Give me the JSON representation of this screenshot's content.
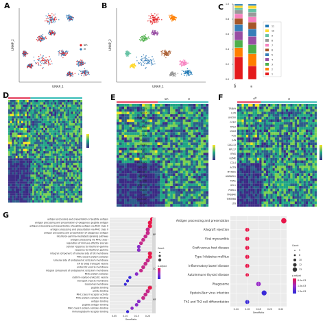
{
  "panels": {
    "A": {
      "letter": "A",
      "xlabel": "UMAP_1",
      "ylabel": "UMAP_2",
      "legend": [
        {
          "label": "NIR",
          "color": "#e41a1c"
        },
        {
          "label": "IR",
          "color": "#377eb8"
        }
      ]
    },
    "B": {
      "letter": "B",
      "xlabel": "UMAP_1",
      "ylabel": "UMAP_2"
    },
    "C": {
      "letter": "C",
      "xticks": [
        "NIR",
        "IR"
      ],
      "yticks": [
        "0.0",
        "0.2",
        "0.4",
        "0.6",
        "0.8",
        "1.0"
      ],
      "legend": [
        "11",
        "10",
        "9",
        "8",
        "7",
        "6",
        "5",
        "4",
        "3",
        "2",
        "1"
      ]
    },
    "D": {
      "letter": "D"
    },
    "E": {
      "letter": "E",
      "groups": [
        "NIR",
        "IR"
      ],
      "genes": [
        "CCL5",
        "NKG7",
        "HLA-DRA",
        "CD74",
        "LINC02",
        "IGKC",
        "JCHAIN",
        "IGHA1",
        "MZB1",
        "XBP1",
        "IGLV3",
        "LINC01",
        "MT-RNR2",
        "MT-ND3",
        "MT-CO1",
        "MT-ND4",
        "MT-CYB",
        "MT-ATP6",
        "TRBV9",
        "CD8A",
        "ALOX5AP",
        "RPL41"
      ]
    },
    "F": {
      "letter": "F",
      "groups": [
        "NIR",
        "IR"
      ],
      "genes": [
        "TRBV9",
        "IL7R",
        "LINC00",
        "CCR7",
        "RPS3",
        "IGHM",
        "FOS",
        "JUN",
        "CXCL13",
        "RPL17",
        "IFNG",
        "GZMK",
        "CCL4",
        "ACTB",
        "MT-ND1",
        "HNRNPA1",
        "TRAC",
        "XCL1",
        "PNRC1",
        "TMSB4X",
        "TMEM66",
        "LTB"
      ]
    },
    "G": {
      "letter": "G",
      "go_terms": [
        "antigen processing and presentation of peptide antigen",
        "antigen processing and presentation of exogenous peptide antigen",
        "antigen processing and presentation of peptide antigen via MHC class II",
        "antigen processing and presentation via MHC class II",
        "antigen processing and presentation of exogenous antigen",
        "interferon-gamma-mediated signaling pathway",
        "antigen processing via MHC class I",
        "regulation of immune effector process",
        "cellular response to interferon-gamma",
        "response to interferon-gamma",
        "integral component of lumenal side of ER membrane",
        "MHC class II protein complex",
        "lumenal side of endoplasmic reticulum membrane",
        "ER to Golgi transport vesicle",
        "endocytic vesicle membrane",
        "integral component of endoplasmic reticulum membrane",
        "MHC protein complex",
        "clathrin-coated endocytic vesicle",
        "transport vesicle membrane",
        "lysosomal membrane",
        "peptide binding",
        "amide binding",
        "MHC class II receptor activity",
        "MHC protein complex binding",
        "antigen binding",
        "peptide antigen binding",
        "MHC class II protein complex binding",
        "immunoglobulin receptor binding"
      ],
      "go_x": [
        0.22,
        0.21,
        0.21,
        0.2,
        0.2,
        0.19,
        0.18,
        0.17,
        0.16,
        0.16,
        0.21,
        0.21,
        0.2,
        0.19,
        0.18,
        0.17,
        0.15,
        0.12,
        0.11,
        0.1,
        0.21,
        0.2,
        0.19,
        0.18,
        0.16,
        0.15,
        0.13,
        0.11
      ],
      "go_xticks": [
        "0.05",
        "0.10",
        "0.15",
        "0.20"
      ],
      "go_xlabel": "GeneRatio",
      "go_categories": [
        "BP",
        "CC",
        "MF"
      ],
      "go_size_title": "Count",
      "go_color_title": "p.adjust",
      "kegg_terms": [
        "Antigen processing and presentation",
        "Allograft rejection",
        "Viral myocarditis",
        "Graft-versus-host disease",
        "Type I diabetes mellitus",
        "Inflammatory bowel disease",
        "Autoimmune thyroid disease",
        "Phagosome",
        "Epstein-Barr virus infection",
        "Th1 and Th2 cell differentiation"
      ],
      "kegg_x": [
        0.225,
        0.16,
        0.16,
        0.16,
        0.16,
        0.16,
        0.16,
        0.18,
        0.19,
        0.16
      ],
      "kegg_count": [
        13,
        9,
        9,
        9,
        9,
        9,
        7,
        11,
        12,
        9
      ],
      "kegg_color": [
        "#e8174a",
        "#e8174a",
        "#e8174a",
        "#e8174a",
        "#e8174a",
        "#e8174a",
        "#e8174a",
        "#9a2ec8",
        "#3a2ad8",
        "#3a2ad8"
      ],
      "kegg_xticks": [
        "0.14",
        "0.16",
        "0.18",
        "0.20",
        "0.22"
      ],
      "kegg_xlabel": "GeneRatio",
      "kegg_size_title": "Count",
      "kegg_sizes": [
        "5",
        "8",
        "10",
        "12",
        "13"
      ],
      "kegg_color_title": "p.adjust",
      "kegg_color_ticks": [
        "8.0e-03",
        "1.0e-03",
        "1.3e-03"
      ]
    }
  },
  "colors": {
    "nir": "#e41a1c",
    "ir": "#377eb8",
    "heat_low": "#3b2a84",
    "heat_mid": "#21a685",
    "heat_high": "#f9e721",
    "annot_nir": "#e8627a",
    "annot_ir": "#5cc9c4",
    "cluster_palette": [
      "#e41a1c",
      "#ff7f00",
      "#4daf4a",
      "#984ea3",
      "#377eb8",
      "#a65628",
      "#f781bf",
      "#999999",
      "#66c2a5",
      "#ffd92f",
      "#1f78b4"
    ]
  }
}
